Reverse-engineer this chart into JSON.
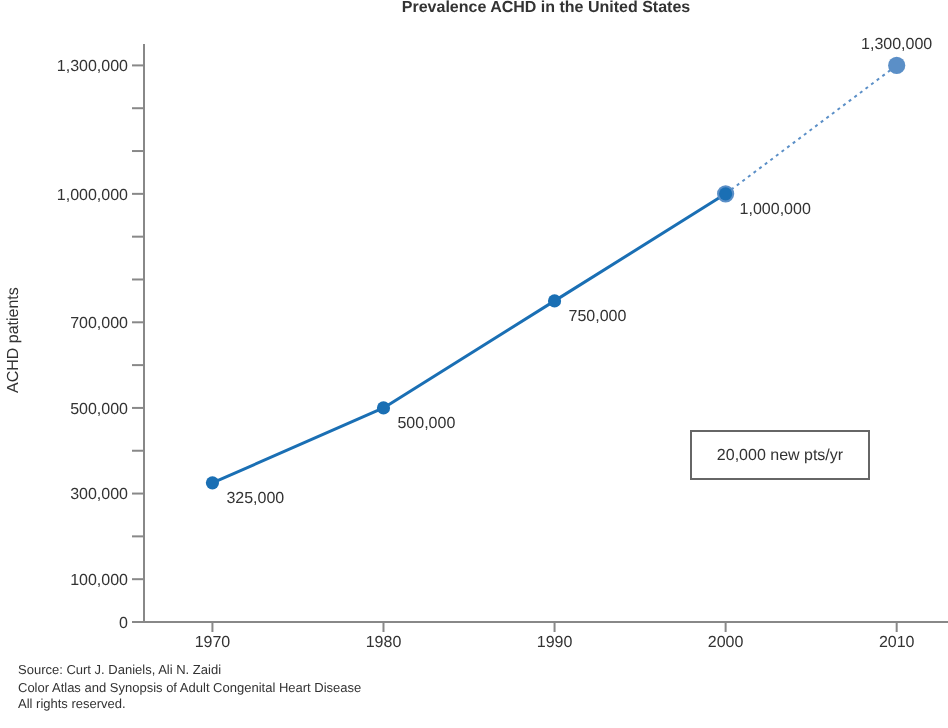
{
  "chart_data": {
    "type": "line",
    "title": "Prevalence ACHD in the United States",
    "ylabel": "ACHD patients",
    "x": [
      1970,
      1980,
      1990,
      2000,
      2010
    ],
    "series": [
      {
        "color": "#1a6fb4",
        "line_style": "solid",
        "values": [
          325000,
          500000,
          750000,
          1000000,
          null
        ],
        "value_labels": [
          "325,000",
          "500,000",
          "750,000",
          "1,000,000",
          null
        ]
      },
      {
        "color": "#5b8fc7",
        "line_style": "dotted",
        "values": [
          null,
          null,
          null,
          1000000,
          1300000
        ],
        "value_labels": [
          null,
          null,
          null,
          null,
          "1,300,000"
        ]
      }
    ],
    "marker": "circle",
    "grid": false,
    "legend": false,
    "xlim": [
      1966,
      2013
    ],
    "xticks": [
      1970,
      1980,
      1990,
      2000,
      2010
    ],
    "ylim": [
      0,
      1350000
    ],
    "yticks": [
      {
        "value": 0,
        "label": "0"
      },
      {
        "value": 100000,
        "label": "100,000"
      },
      {
        "value": 200000,
        "label": null
      },
      {
        "value": 300000,
        "label": "300,000"
      },
      {
        "value": 400000,
        "label": null
      },
      {
        "value": 500000,
        "label": "500,000"
      },
      {
        "value": 600000,
        "label": null
      },
      {
        "value": 700000,
        "label": "700,000"
      },
      {
        "value": 800000,
        "label": null
      },
      {
        "value": 900000,
        "label": null
      },
      {
        "value": 1000000,
        "label": "1,000,000"
      },
      {
        "value": 1100000,
        "label": null
      },
      {
        "value": 1200000,
        "label": null
      },
      {
        "value": 1300000,
        "label": "1,300,000"
      }
    ],
    "annotations": [
      "20,000 new pts/yr",
      "Source: Curt J. Daniels, Ali N. Zaidi",
      "Color Atlas and Synopsis of Adult Congenital Heart Disease",
      "All rights reserved."
    ]
  }
}
